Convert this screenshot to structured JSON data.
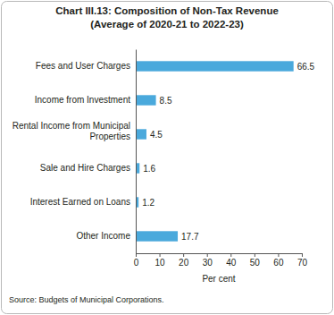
{
  "chart_data": {
    "type": "bar",
    "orientation": "horizontal",
    "title": "Chart III.13: Composition of Non-Tax Revenue",
    "subtitle": "(Average of 2020-21 to 2022-23)",
    "categories": [
      "Fees and User Charges",
      "Income from Investment",
      "Rental Income from Municipal Properties",
      "Sale and Hire Charges",
      "Interest Earned on Loans",
      "Other Income"
    ],
    "values": [
      66.5,
      8.5,
      4.5,
      1.6,
      1.2,
      17.7
    ],
    "color": "#4aa9dc",
    "x_label": "Per cent",
    "xlim": [
      0,
      70
    ],
    "xticks": [
      0,
      10,
      20,
      30,
      40,
      50,
      60,
      70
    ],
    "grid": false,
    "data_labels": true,
    "annotations": [
      "Source: Budgets of Municipal Corporations."
    ]
  }
}
